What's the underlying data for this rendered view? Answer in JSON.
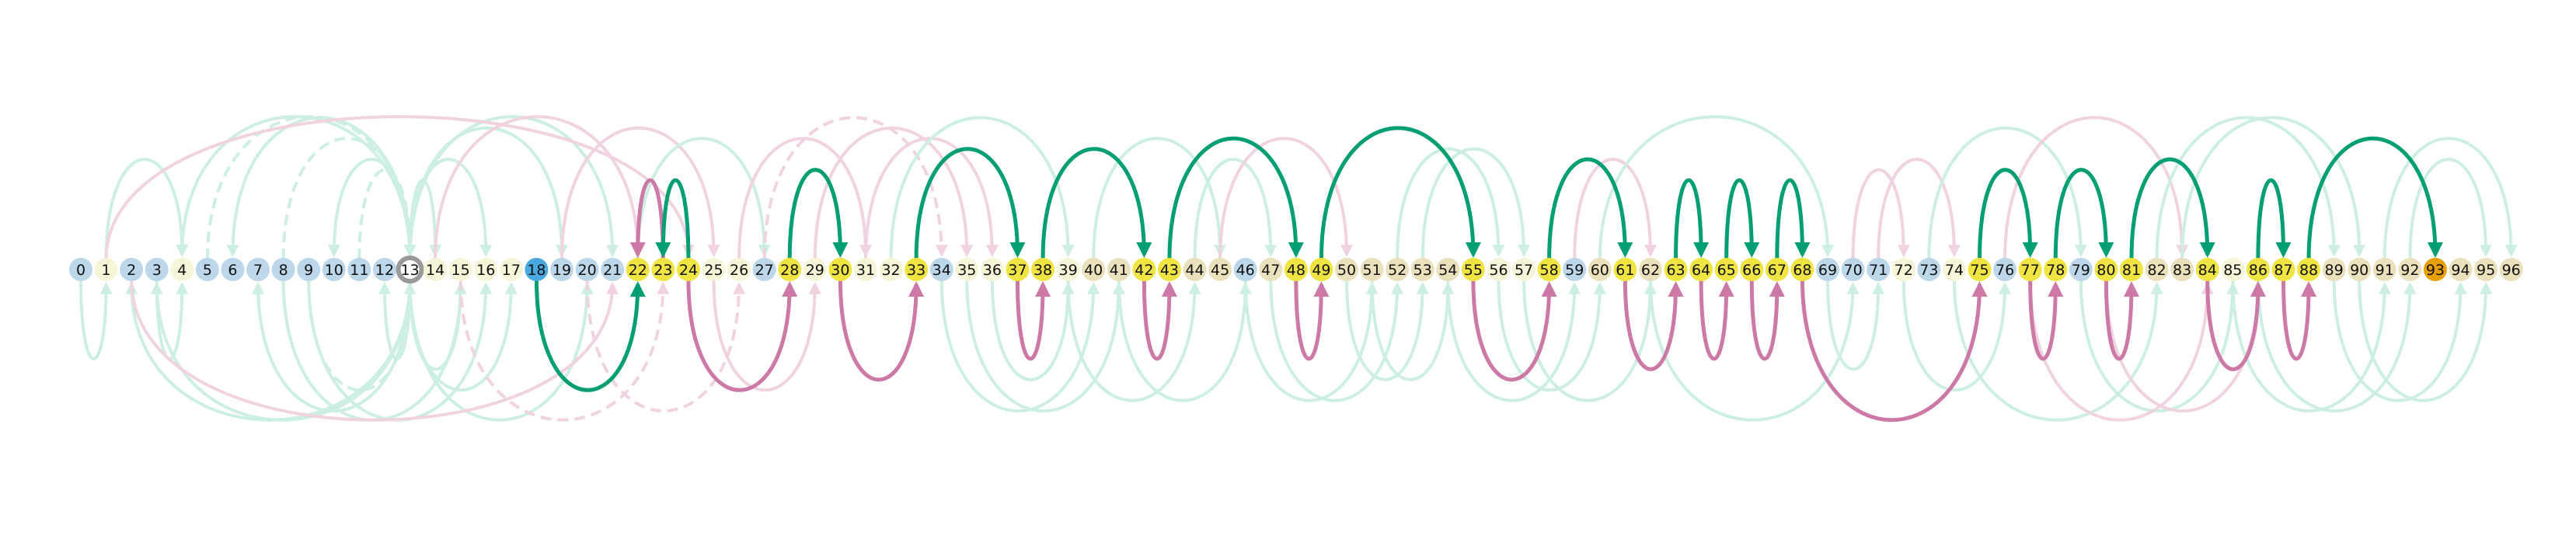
{
  "diagram": {
    "nodes": [
      {
        "label": "0",
        "color": "#bcd7ea"
      },
      {
        "label": "1",
        "color": "#f7f5d7"
      },
      {
        "label": "2",
        "color": "#bcd7ea"
      },
      {
        "label": "3",
        "color": "#bcd7ea"
      },
      {
        "label": "4",
        "color": "#f7f5d7"
      },
      {
        "label": "5",
        "color": "#bcd7ea"
      },
      {
        "label": "6",
        "color": "#bcd7ea"
      },
      {
        "label": "7",
        "color": "#bcd7ea"
      },
      {
        "label": "8",
        "color": "#bcd7ea"
      },
      {
        "label": "9",
        "color": "#bcd7ea"
      },
      {
        "label": "10",
        "color": "#bcd7ea"
      },
      {
        "label": "11",
        "color": "#bcd7ea"
      },
      {
        "label": "12",
        "color": "#bcd7ea"
      },
      {
        "label": "13",
        "color": "#bcd7ea",
        "ring": true
      },
      {
        "label": "14",
        "color": "#f7f5d7"
      },
      {
        "label": "15",
        "color": "#f7f5d7"
      },
      {
        "label": "16",
        "color": "#f7f5d7"
      },
      {
        "label": "17",
        "color": "#f7f5d7"
      },
      {
        "label": "18",
        "color": "#4aa8e0"
      },
      {
        "label": "19",
        "color": "#bcd7ea"
      },
      {
        "label": "20",
        "color": "#bcd7ea"
      },
      {
        "label": "21",
        "color": "#bcd7ea"
      },
      {
        "label": "22",
        "color": "#f0e442"
      },
      {
        "label": "23",
        "color": "#f0e442"
      },
      {
        "label": "24",
        "color": "#f0e442"
      },
      {
        "label": "25",
        "color": "#f7f5d7"
      },
      {
        "label": "26",
        "color": "#f7f5d7"
      },
      {
        "label": "27",
        "color": "#bcd7ea"
      },
      {
        "label": "28",
        "color": "#f0e442"
      },
      {
        "label": "29",
        "color": "#f7f5d7"
      },
      {
        "label": "30",
        "color": "#f0e442"
      },
      {
        "label": "31",
        "color": "#f7f5d7"
      },
      {
        "label": "32",
        "color": "#f7f5d7"
      },
      {
        "label": "33",
        "color": "#f0e442"
      },
      {
        "label": "34",
        "color": "#bcd7ea"
      },
      {
        "label": "35",
        "color": "#f7f5d7"
      },
      {
        "label": "36",
        "color": "#f7f5d7"
      },
      {
        "label": "37",
        "color": "#f0e442"
      },
      {
        "label": "38",
        "color": "#f0e442"
      },
      {
        "label": "39",
        "color": "#f7f5d7"
      },
      {
        "label": "40",
        "color": "#ebe0bc"
      },
      {
        "label": "41",
        "color": "#ebe0bc"
      },
      {
        "label": "42",
        "color": "#f0e442"
      },
      {
        "label": "43",
        "color": "#f0e442"
      },
      {
        "label": "44",
        "color": "#ebe0bc"
      },
      {
        "label": "45",
        "color": "#ebe0bc"
      },
      {
        "label": "46",
        "color": "#bcd7ea"
      },
      {
        "label": "47",
        "color": "#ebe0bc"
      },
      {
        "label": "48",
        "color": "#f0e442"
      },
      {
        "label": "49",
        "color": "#f0e442"
      },
      {
        "label": "50",
        "color": "#ebe0bc"
      },
      {
        "label": "51",
        "color": "#ebe0bc"
      },
      {
        "label": "52",
        "color": "#ebe0bc"
      },
      {
        "label": "53",
        "color": "#ebe0bc"
      },
      {
        "label": "54",
        "color": "#ebe0bc"
      },
      {
        "label": "55",
        "color": "#f0e442"
      },
      {
        "label": "56",
        "color": "#f7f5d7"
      },
      {
        "label": "57",
        "color": "#f7f5d7"
      },
      {
        "label": "58",
        "color": "#f0e442"
      },
      {
        "label": "59",
        "color": "#bcd7ea"
      },
      {
        "label": "60",
        "color": "#ebe0bc"
      },
      {
        "label": "61",
        "color": "#f0e442"
      },
      {
        "label": "62",
        "color": "#ebe0bc"
      },
      {
        "label": "63",
        "color": "#f0e442"
      },
      {
        "label": "64",
        "color": "#f0e442"
      },
      {
        "label": "65",
        "color": "#f0e442"
      },
      {
        "label": "66",
        "color": "#f0e442"
      },
      {
        "label": "67",
        "color": "#f0e442"
      },
      {
        "label": "68",
        "color": "#f0e442"
      },
      {
        "label": "69",
        "color": "#bcd7ea"
      },
      {
        "label": "70",
        "color": "#bcd7ea"
      },
      {
        "label": "71",
        "color": "#bcd7ea"
      },
      {
        "label": "72",
        "color": "#f7f5d7"
      },
      {
        "label": "73",
        "color": "#bcd7ea"
      },
      {
        "label": "74",
        "color": "#f7f5d7"
      },
      {
        "label": "75",
        "color": "#f0e442"
      },
      {
        "label": "76",
        "color": "#bcd7ea"
      },
      {
        "label": "77",
        "color": "#f0e442"
      },
      {
        "label": "78",
        "color": "#f0e442"
      },
      {
        "label": "79",
        "color": "#bcd7ea"
      },
      {
        "label": "80",
        "color": "#f0e442"
      },
      {
        "label": "81",
        "color": "#f0e442"
      },
      {
        "label": "82",
        "color": "#ebe0bc"
      },
      {
        "label": "83",
        "color": "#ebe0bc"
      },
      {
        "label": "84",
        "color": "#f0e442"
      },
      {
        "label": "85",
        "color": "#f7f5d7"
      },
      {
        "label": "86",
        "color": "#f0e442"
      },
      {
        "label": "87",
        "color": "#f0e442"
      },
      {
        "label": "88",
        "color": "#f0e442"
      },
      {
        "label": "89",
        "color": "#ebe0bc"
      },
      {
        "label": "90",
        "color": "#ebe0bc"
      },
      {
        "label": "91",
        "color": "#ebe0bc"
      },
      {
        "label": "92",
        "color": "#ebe0bc"
      },
      {
        "label": "93",
        "color": "#e69f00"
      },
      {
        "label": "94",
        "color": "#ebe0bc"
      },
      {
        "label": "95",
        "color": "#ebe0bc"
      },
      {
        "label": "96",
        "color": "#ebe0bc"
      }
    ],
    "colors": {
      "green": "#009e73",
      "pink": "#cc79a7",
      "green_faint": "#cdeee2",
      "pink_faint": "#f0d2e1",
      "ring": "#999999"
    },
    "edges_emphasized": [
      {
        "from": 18,
        "to": 22,
        "color": "green",
        "side": "below"
      },
      {
        "from": 23,
        "to": 22,
        "color": "pink",
        "side": "above"
      },
      {
        "from": 24,
        "to": 23,
        "color": "green",
        "side": "above"
      },
      {
        "from": 24,
        "to": 28,
        "color": "pink",
        "side": "below"
      },
      {
        "from": 28,
        "to": 30,
        "color": "green",
        "side": "above"
      },
      {
        "from": 30,
        "to": 33,
        "color": "pink",
        "side": "below"
      },
      {
        "from": 33,
        "to": 37,
        "color": "green",
        "side": "above"
      },
      {
        "from": 37,
        "to": 38,
        "color": "pink",
        "side": "below"
      },
      {
        "from": 38,
        "to": 42,
        "color": "green",
        "side": "above"
      },
      {
        "from": 42,
        "to": 43,
        "color": "pink",
        "side": "below"
      },
      {
        "from": 43,
        "to": 48,
        "color": "green",
        "side": "above"
      },
      {
        "from": 48,
        "to": 49,
        "color": "pink",
        "side": "below"
      },
      {
        "from": 49,
        "to": 55,
        "color": "green",
        "side": "above"
      },
      {
        "from": 55,
        "to": 58,
        "color": "pink",
        "side": "below"
      },
      {
        "from": 58,
        "to": 61,
        "color": "green",
        "side": "above"
      },
      {
        "from": 61,
        "to": 63,
        "color": "pink",
        "side": "below"
      },
      {
        "from": 63,
        "to": 64,
        "color": "green",
        "side": "above"
      },
      {
        "from": 64,
        "to": 65,
        "color": "pink",
        "side": "below"
      },
      {
        "from": 65,
        "to": 66,
        "color": "green",
        "side": "above"
      },
      {
        "from": 66,
        "to": 67,
        "color": "pink",
        "side": "below"
      },
      {
        "from": 67,
        "to": 68,
        "color": "green",
        "side": "above"
      },
      {
        "from": 68,
        "to": 75,
        "color": "pink",
        "side": "below"
      },
      {
        "from": 75,
        "to": 77,
        "color": "green",
        "side": "above"
      },
      {
        "from": 77,
        "to": 78,
        "color": "pink",
        "side": "below"
      },
      {
        "from": 78,
        "to": 80,
        "color": "green",
        "side": "above"
      },
      {
        "from": 80,
        "to": 81,
        "color": "pink",
        "side": "below"
      },
      {
        "from": 81,
        "to": 84,
        "color": "green",
        "side": "above"
      },
      {
        "from": 84,
        "to": 86,
        "color": "pink",
        "side": "below"
      },
      {
        "from": 86,
        "to": 87,
        "color": "green",
        "side": "above"
      },
      {
        "from": 87,
        "to": 88,
        "color": "pink",
        "side": "below"
      },
      {
        "from": 88,
        "to": 93,
        "color": "green",
        "side": "above"
      }
    ],
    "edges_faint": [
      {
        "from": 13,
        "to": 2,
        "color": "green_faint",
        "side": "below"
      },
      {
        "from": 13,
        "to": 3,
        "color": "green_faint",
        "side": "below"
      },
      {
        "from": 13,
        "to": 4,
        "color": "green_faint",
        "side": "above"
      },
      {
        "from": 13,
        "to": 6,
        "color": "green_faint",
        "side": "above"
      },
      {
        "from": 13,
        "to": 7,
        "color": "green_faint",
        "side": "below"
      },
      {
        "from": 13,
        "to": 10,
        "color": "green_faint",
        "side": "above"
      },
      {
        "from": 13,
        "to": 12,
        "color": "green_faint",
        "side": "below"
      },
      {
        "from": 13,
        "to": 14,
        "color": "green_faint",
        "side": "above"
      },
      {
        "from": 13,
        "to": 15,
        "color": "green_faint",
        "side": "below"
      },
      {
        "from": 13,
        "to": 16,
        "color": "green_faint",
        "side": "above"
      },
      {
        "from": 13,
        "to": 17,
        "color": "green_faint",
        "side": "below"
      },
      {
        "from": 13,
        "to": 19,
        "color": "green_faint",
        "side": "above"
      },
      {
        "from": 13,
        "to": 20,
        "color": "green_faint",
        "side": "below"
      },
      {
        "from": 13,
        "to": 21,
        "color": "green_faint",
        "side": "above"
      },
      {
        "from": 5,
        "to": 13,
        "color": "green_faint",
        "side": "above",
        "dash": true
      },
      {
        "from": 8,
        "to": 13,
        "color": "green_faint",
        "side": "above",
        "dash": true
      },
      {
        "from": 9,
        "to": 13,
        "color": "green_faint",
        "side": "below",
        "dash": true
      },
      {
        "from": 11,
        "to": 13,
        "color": "green_faint",
        "side": "above",
        "dash": true
      },
      {
        "from": 1,
        "to": 4,
        "color": "green_faint",
        "side": "above"
      },
      {
        "from": 0,
        "to": 1,
        "color": "green_faint",
        "side": "below"
      },
      {
        "from": 3,
        "to": 4,
        "color": "green_faint",
        "side": "below"
      },
      {
        "from": 8,
        "to": 15,
        "color": "green_faint",
        "side": "below"
      },
      {
        "from": 9,
        "to": 16,
        "color": "green_faint",
        "side": "below"
      },
      {
        "from": 14,
        "to": 22,
        "color": "pink_faint",
        "side": "above"
      },
      {
        "from": 15,
        "to": 23,
        "color": "pink_faint",
        "side": "below",
        "dash": true
      },
      {
        "from": 2,
        "to": 21,
        "color": "pink_faint",
        "side": "below"
      },
      {
        "from": 1,
        "to": 24,
        "color": "pink_faint",
        "side": "above"
      },
      {
        "from": 19,
        "to": 25,
        "color": "pink_faint",
        "side": "above"
      },
      {
        "from": 20,
        "to": 26,
        "color": "pink_faint",
        "side": "below",
        "dash": true
      },
      {
        "from": 22,
        "to": 27,
        "color": "green_faint",
        "side": "above"
      },
      {
        "from": 25,
        "to": 29,
        "color": "pink_faint",
        "side": "below"
      },
      {
        "from": 26,
        "to": 31,
        "color": "pink_faint",
        "side": "above"
      },
      {
        "from": 27,
        "to": 34,
        "color": "pink_faint",
        "side": "above",
        "dash": true
      },
      {
        "from": 29,
        "to": 35,
        "color": "pink_faint",
        "side": "above"
      },
      {
        "from": 31,
        "to": 36,
        "color": "pink_faint",
        "side": "above"
      },
      {
        "from": 32,
        "to": 39,
        "color": "green_faint",
        "side": "above"
      },
      {
        "from": 34,
        "to": 40,
        "color": "green_faint",
        "side": "below"
      },
      {
        "from": 35,
        "to": 41,
        "color": "green_faint",
        "side": "below"
      },
      {
        "from": 36,
        "to": 39,
        "color": "green_faint",
        "side": "below"
      },
      {
        "from": 39,
        "to": 44,
        "color": "green_faint",
        "side": "below"
      },
      {
        "from": 40,
        "to": 45,
        "color": "green_faint",
        "side": "above"
      },
      {
        "from": 41,
        "to": 46,
        "color": "green_faint",
        "side": "below"
      },
      {
        "from": 44,
        "to": 47,
        "color": "green_faint",
        "side": "above"
      },
      {
        "from": 45,
        "to": 50,
        "color": "pink_faint",
        "side": "above"
      },
      {
        "from": 46,
        "to": 51,
        "color": "green_faint",
        "side": "below"
      },
      {
        "from": 47,
        "to": 52,
        "color": "green_faint",
        "side": "below"
      },
      {
        "from": 50,
        "to": 53,
        "color": "green_faint",
        "side": "below"
      },
      {
        "from": 51,
        "to": 54,
        "color": "green_faint",
        "side": "below"
      },
      {
        "from": 52,
        "to": 56,
        "color": "green_faint",
        "side": "above"
      },
      {
        "from": 53,
        "to": 57,
        "color": "green_faint",
        "side": "above"
      },
      {
        "from": 54,
        "to": 59,
        "color": "green_faint",
        "side": "below"
      },
      {
        "from": 56,
        "to": 60,
        "color": "green_faint",
        "side": "below"
      },
      {
        "from": 57,
        "to": 62,
        "color": "green_faint",
        "side": "below"
      },
      {
        "from": 59,
        "to": 62,
        "color": "pink_faint",
        "side": "above"
      },
      {
        "from": 60,
        "to": 69,
        "color": "green_faint",
        "side": "above"
      },
      {
        "from": 62,
        "to": 70,
        "color": "green_faint",
        "side": "below"
      },
      {
        "from": 69,
        "to": 71,
        "color": "green_faint",
        "side": "below"
      },
      {
        "from": 70,
        "to": 72,
        "color": "pink_faint",
        "side": "above"
      },
      {
        "from": 71,
        "to": 74,
        "color": "pink_faint",
        "side": "above"
      },
      {
        "from": 72,
        "to": 76,
        "color": "green_faint",
        "side": "below"
      },
      {
        "from": 73,
        "to": 79,
        "color": "green_faint",
        "side": "above"
      },
      {
        "from": 74,
        "to": 82,
        "color": "green_faint",
        "side": "below"
      },
      {
        "from": 76,
        "to": 83,
        "color": "pink_faint",
        "side": "above"
      },
      {
        "from": 79,
        "to": 85,
        "color": "green_faint",
        "side": "below"
      },
      {
        "from": 82,
        "to": 89,
        "color": "green_faint",
        "side": "above"
      },
      {
        "from": 83,
        "to": 90,
        "color": "green_faint",
        "side": "above"
      },
      {
        "from": 85,
        "to": 91,
        "color": "green_faint",
        "side": "below"
      },
      {
        "from": 89,
        "to": 94,
        "color": "green_faint",
        "side": "below"
      },
      {
        "from": 90,
        "to": 95,
        "color": "green_faint",
        "side": "below"
      },
      {
        "from": 91,
        "to": 96,
        "color": "green_faint",
        "side": "above"
      },
      {
        "from": 92,
        "to": 95,
        "color": "green_faint",
        "side": "above"
      },
      {
        "from": 86,
        "to": 92,
        "color": "green_faint",
        "side": "below"
      },
      {
        "from": 80,
        "to": 86,
        "color": "pink_faint",
        "side": "below"
      },
      {
        "from": 77,
        "to": 84,
        "color": "pink_faint",
        "side": "below"
      }
    ]
  }
}
